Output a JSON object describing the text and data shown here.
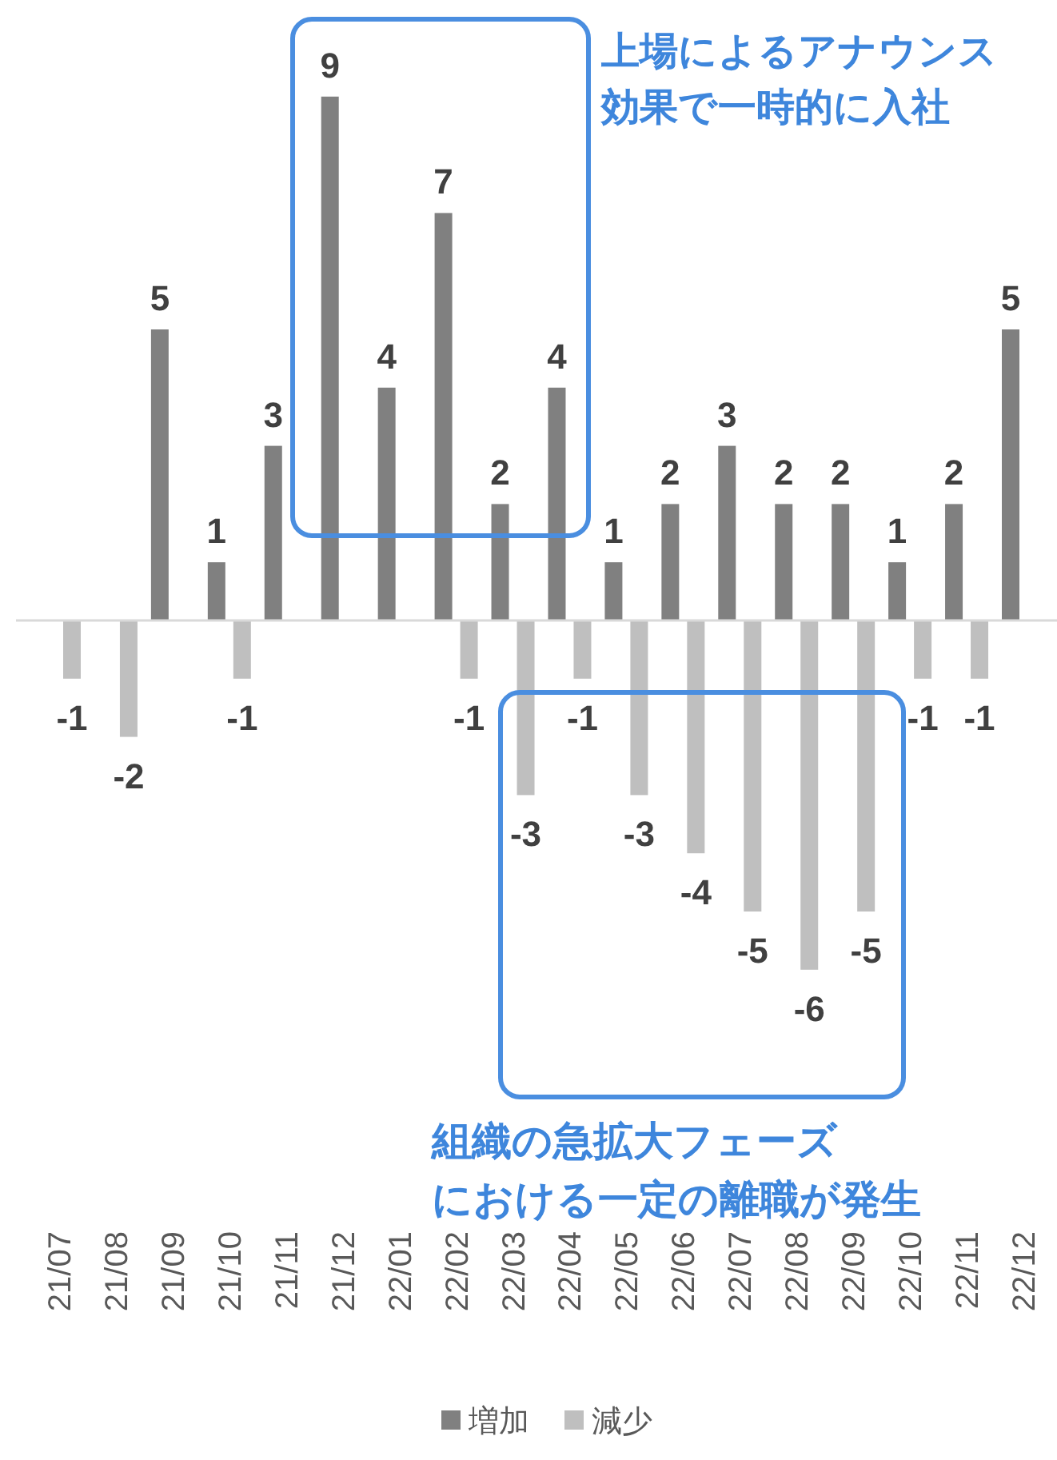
{
  "chart_data": {
    "type": "bar",
    "relative": false,
    "data_labels": true,
    "legend": "bottom",
    "categories": [
      "21/07",
      "21/08",
      "21/09",
      "21/10",
      "21/11",
      "21/12",
      "22/01",
      "22/02",
      "22/03",
      "22/04",
      "22/05",
      "22/06",
      "22/07",
      "22/08",
      "22/09",
      "22/10",
      "22/11",
      "22/12"
    ],
    "series": [
      {
        "name": "増加",
        "color": "#808080",
        "values": [
          null,
          null,
          5,
          1,
          3,
          9,
          4,
          7,
          2,
          4,
          1,
          2,
          3,
          2,
          2,
          1,
          2,
          5
        ]
      },
      {
        "name": "減少",
        "color": "#bfbfbf",
        "values": [
          -1,
          -2,
          null,
          -1,
          null,
          null,
          null,
          -1,
          -3,
          -1,
          -3,
          -4,
          -5,
          -6,
          -5,
          -1,
          -1,
          null
        ]
      }
    ],
    "annotations": [
      "上場によるアナウンス効果で一時的に入社",
      "組織の急拡大フェーズにおける一定の離職が発生"
    ]
  }
}
